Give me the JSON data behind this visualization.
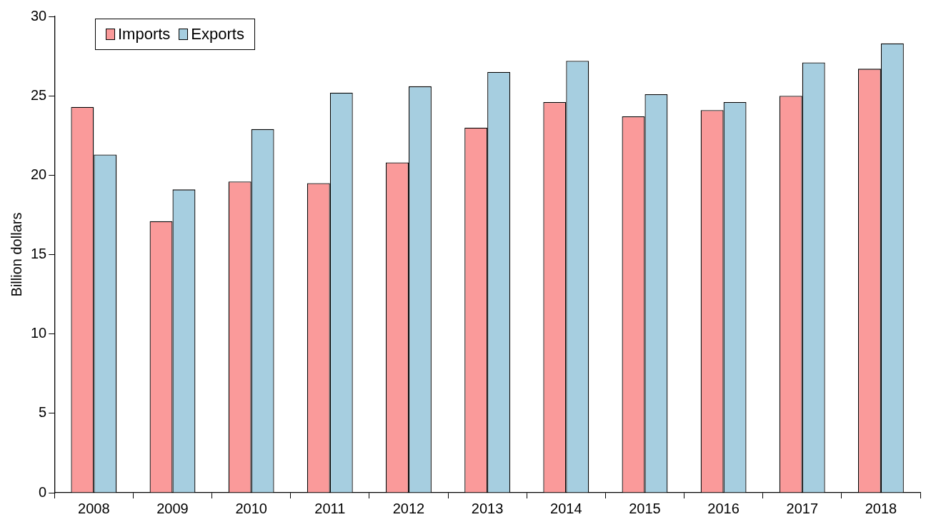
{
  "chart_data": {
    "type": "bar",
    "ylabel": "Billion dollars",
    "categories": [
      "2008",
      "2009",
      "2010",
      "2011",
      "2012",
      "2013",
      "2014",
      "2015",
      "2016",
      "2017",
      "2018"
    ],
    "series": [
      {
        "name": "Imports",
        "color": "#fa9a9a",
        "values": [
          24.3,
          17.1,
          19.6,
          19.5,
          20.8,
          23.0,
          24.6,
          23.7,
          24.1,
          25.0,
          26.7
        ]
      },
      {
        "name": "Exports",
        "color": "#a6cee0",
        "values": [
          21.3,
          19.1,
          22.9,
          25.2,
          25.6,
          26.5,
          27.2,
          25.1,
          24.6,
          27.1,
          28.3
        ]
      }
    ],
    "ylim": [
      0,
      30
    ],
    "yticks": [
      0,
      5,
      10,
      15,
      20,
      25,
      30
    ],
    "grid": false,
    "legend": "top left"
  }
}
